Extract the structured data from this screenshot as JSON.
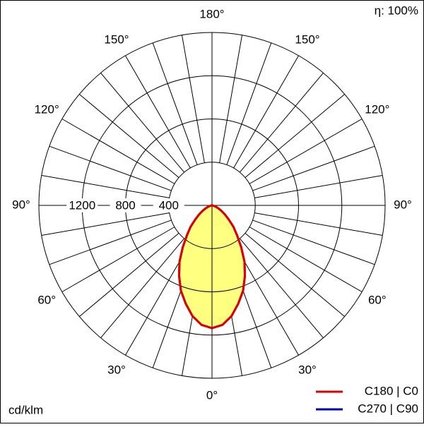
{
  "chart_data": {
    "type": "polar",
    "efficiency": "η: 100%",
    "unit_label": "cd/klm",
    "x": [
      0,
      5,
      10,
      15,
      20,
      25,
      30,
      35,
      40,
      45,
      50,
      55,
      60,
      65,
      70,
      75,
      80,
      85,
      90
    ],
    "series": [
      {
        "name": "C180 | C0",
        "color": "#e00000",
        "values": [
          1136,
          1110,
          1040,
          940,
          840,
          720,
          600,
          470,
          360,
          280,
          200,
          145,
          100,
          65,
          40,
          22,
          10,
          4,
          0
        ]
      },
      {
        "name": "C270 | C90",
        "color": "#0000b0",
        "values": [
          1136,
          1110,
          1040,
          940,
          840,
          720,
          600,
          470,
          360,
          280,
          200,
          145,
          100,
          65,
          40,
          22,
          10,
          4,
          0
        ]
      }
    ],
    "rlim": [
      0,
      1600
    ],
    "rticks": [
      400,
      800,
      1200
    ],
    "angle_ticks": [
      {
        "value": 0,
        "label": "0°"
      },
      {
        "value": 30,
        "label": "30°"
      },
      {
        "value": 60,
        "label": "60°"
      },
      {
        "value": 90,
        "label": "90°"
      },
      {
        "value": 120,
        "label": "120°"
      },
      {
        "value": 150,
        "label": "150°"
      },
      {
        "value": 180,
        "label": "180°"
      }
    ],
    "fill_color": "#ffff80"
  }
}
